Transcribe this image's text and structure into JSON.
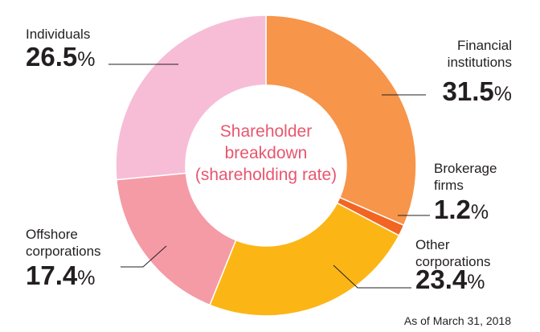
{
  "chart_data": {
    "type": "donut",
    "title": "Shareholder\nbreakdown\n(shareholding rate)",
    "note": "As of March 31, 2018",
    "categories": [
      "Financial\ninstitutions",
      "Brokerage\nfirms",
      "Other\ncorporations",
      "Offshore\ncorporations",
      "Individuals"
    ],
    "values": [
      31.5,
      1.2,
      23.4,
      17.4,
      26.5
    ],
    "value_labels": [
      "31.5%",
      "1.2%",
      "23.4%",
      "17.4%",
      "26.5%"
    ],
    "colors": [
      "#f7954a",
      "#f26522",
      "#fbb616",
      "#f49ba6",
      "#f7bdd6"
    ]
  }
}
